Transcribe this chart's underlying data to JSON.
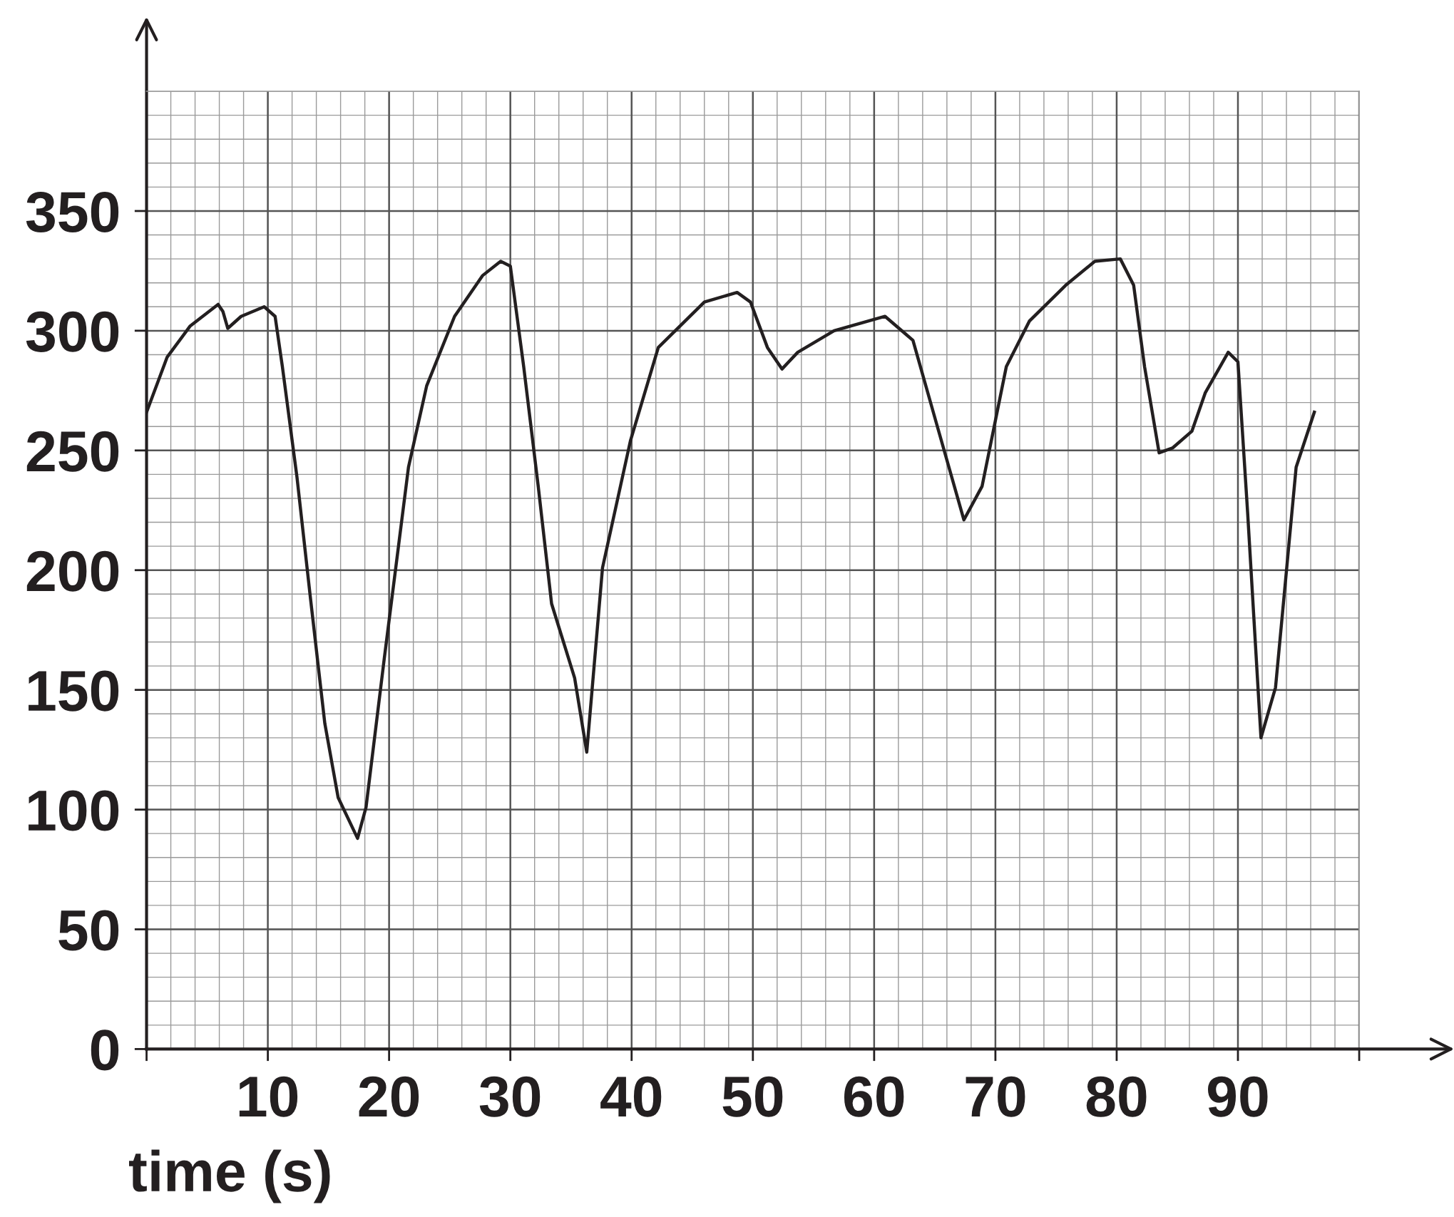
{
  "chart_data": {
    "type": "line",
    "xlabel": "time (s)",
    "x": [
      0,
      1.7,
      3.6,
      5.9,
      6.3,
      6.7,
      7.8,
      9.7,
      10.6,
      11.2,
      12.4,
      13.5,
      14.7,
      15.8,
      17.4,
      18.1,
      19.6,
      21.6,
      23.1,
      25.4,
      27.7,
      29.2,
      30.0,
      31.1,
      32.3,
      33.4,
      35.3,
      36.3,
      37.6,
      39.9,
      42.2,
      46.0,
      48.7,
      49.8,
      51.2,
      52.4,
      53.7,
      56.7,
      60.9,
      63.2,
      65.1,
      67.4,
      68.9,
      70.9,
      72.8,
      75.8,
      78.2,
      80.3,
      81.4,
      82.3,
      83.5,
      84.6,
      86.2,
      87.3,
      89.2,
      90.0,
      90.8,
      91.9,
      93.1,
      94.8,
      96.3
    ],
    "series": [
      {
        "color": "#231f20",
        "values": [
          266,
          289,
          302,
          311,
          308,
          301,
          306,
          310,
          306,
          285,
          239,
          189,
          136,
          105,
          88,
          101,
          163,
          243,
          277,
          306,
          323,
          329,
          327,
          285,
          235,
          186,
          155,
          124,
          201,
          254,
          293,
          312,
          316,
          312,
          293,
          284,
          291,
          300,
          306,
          296,
          262,
          221,
          235,
          285,
          304,
          319,
          329,
          330,
          319,
          285,
          249,
          251,
          258,
          274,
          291,
          287,
          224,
          130,
          151,
          243,
          266
        ]
      }
    ],
    "xlim": [
      0,
      100
    ],
    "ylim": [
      0,
      400
    ],
    "xticks": [
      {
        "value": 0,
        "label": null
      },
      10,
      20,
      30,
      40,
      50,
      60,
      70,
      80,
      90,
      {
        "value": 100,
        "label": null
      }
    ],
    "yticks": [
      0,
      50,
      100,
      150,
      200,
      250,
      300,
      350
    ],
    "grid": true,
    "marker": "none",
    "line_style": "solid"
  }
}
